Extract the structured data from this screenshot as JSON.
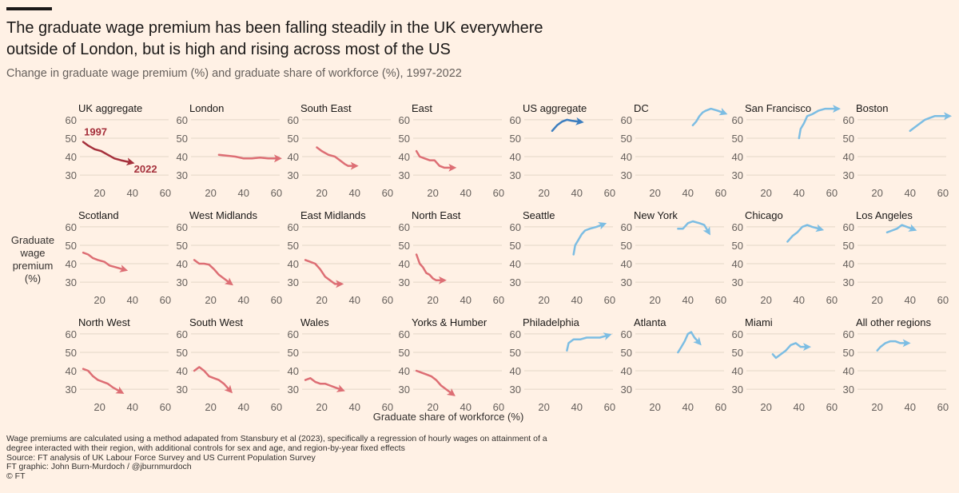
{
  "header": {
    "title": "The graduate wage premium has been falling steadily in the UK everywhere outside of London, but is high and rising across most of the US",
    "subtitle": "Change in graduate wage premium (%) and graduate share of workforce (%), 1997-2022"
  },
  "y_axis_label": "Graduate wage premium (%)",
  "x_axis_label": "Graduate share of workforce (%)",
  "chart_data": [
    {
      "type": "line",
      "title": "UK aggregate",
      "color": "#a5303b",
      "annotations": [
        "1997",
        "2022"
      ],
      "x": [
        10,
        13,
        17,
        21,
        25,
        29,
        33,
        38
      ],
      "values": [
        48,
        46,
        44,
        43,
        41,
        39,
        38,
        37
      ],
      "xlim": [
        8,
        62
      ],
      "ylim": [
        27,
        63
      ],
      "xticks": [
        20,
        40,
        60
      ],
      "yticks": [
        30,
        40,
        50,
        60
      ]
    },
    {
      "type": "line",
      "title": "London",
      "color": "#dd6e74",
      "x": [
        25,
        30,
        35,
        40,
        45,
        50,
        55,
        60
      ],
      "values": [
        41,
        40.5,
        40,
        39,
        39,
        39.5,
        39,
        39
      ],
      "xlim": [
        8,
        62
      ],
      "ylim": [
        27,
        63
      ],
      "xticks": [
        20,
        40,
        60
      ],
      "yticks": [
        30,
        40,
        50,
        60
      ]
    },
    {
      "type": "line",
      "title": "South East",
      "color": "#dd6e74",
      "x": [
        17,
        20,
        24,
        28,
        31,
        34,
        36,
        39
      ],
      "values": [
        45,
        43,
        41,
        40,
        38,
        36,
        35,
        35
      ],
      "xlim": [
        8,
        62
      ],
      "ylim": [
        27,
        63
      ],
      "xticks": [
        20,
        40,
        60
      ],
      "yticks": [
        30,
        40,
        50,
        60
      ]
    },
    {
      "type": "line",
      "title": "East",
      "color": "#dd6e74",
      "x": [
        10,
        12,
        15,
        18,
        21,
        24,
        27,
        31
      ],
      "values": [
        43,
        40,
        39,
        38,
        38,
        35,
        34,
        34
      ],
      "xlim": [
        8,
        62
      ],
      "ylim": [
        27,
        63
      ],
      "xticks": [
        20,
        40,
        60
      ],
      "yticks": [
        30,
        40,
        50,
        60
      ]
    },
    {
      "type": "line",
      "title": "US aggregate",
      "color": "#3d7ebf",
      "x": [
        25,
        28,
        31,
        34,
        37,
        41
      ],
      "values": [
        54,
        57,
        59,
        60,
        59.5,
        59
      ],
      "xlim": [
        8,
        62
      ],
      "ylim": [
        27,
        63
      ],
      "xticks": [
        20,
        40,
        60
      ],
      "yticks": [
        30,
        40,
        50,
        60
      ]
    },
    {
      "type": "line",
      "title": "DC",
      "color": "#7cbde3",
      "x": [
        43,
        45,
        47,
        49,
        51,
        54,
        58,
        61
      ],
      "values": [
        57,
        59,
        62,
        64,
        65,
        66,
        65,
        64
      ],
      "xlim": [
        8,
        62
      ],
      "ylim": [
        27,
        63
      ],
      "xticks": [
        20,
        40,
        60
      ],
      "yticks": [
        30,
        40,
        50,
        60
      ]
    },
    {
      "type": "line",
      "title": "San Francisco",
      "color": "#7cbde3",
      "x": [
        40,
        41,
        43,
        45,
        48,
        52,
        56,
        62
      ],
      "values": [
        50,
        55,
        58,
        62,
        63,
        65,
        66,
        66
      ],
      "xlim": [
        8,
        62
      ],
      "ylim": [
        27,
        63
      ],
      "xticks": [
        20,
        40,
        60
      ],
      "yticks": [
        30,
        40,
        50,
        60
      ]
    },
    {
      "type": "line",
      "title": "Boston",
      "color": "#7cbde3",
      "x": [
        40,
        43,
        46,
        49,
        52,
        55,
        59,
        62
      ],
      "values": [
        54,
        56,
        58,
        60,
        61,
        62,
        62,
        62
      ],
      "xlim": [
        8,
        62
      ],
      "ylim": [
        27,
        63
      ],
      "xticks": [
        20,
        40,
        60
      ],
      "yticks": [
        30,
        40,
        50,
        60
      ]
    },
    {
      "type": "line",
      "title": "Scotland",
      "color": "#dd6e74",
      "x": [
        10,
        13,
        16,
        19,
        23,
        26,
        30,
        34
      ],
      "values": [
        46,
        45,
        43,
        42,
        41,
        39,
        38,
        37
      ],
      "xlim": [
        8,
        62
      ],
      "ylim": [
        27,
        63
      ],
      "xticks": [
        20,
        40,
        60
      ],
      "yticks": [
        30,
        40,
        50,
        60
      ]
    },
    {
      "type": "line",
      "title": "West Midlands",
      "color": "#dd6e74",
      "x": [
        10,
        13,
        16,
        19,
        22,
        25,
        28,
        31
      ],
      "values": [
        42,
        40,
        40,
        39.5,
        37,
        34,
        32,
        30
      ],
      "xlim": [
        8,
        62
      ],
      "ylim": [
        27,
        63
      ],
      "xticks": [
        20,
        40,
        60
      ],
      "yticks": [
        30,
        40,
        50,
        60
      ]
    },
    {
      "type": "line",
      "title": "East Midlands",
      "color": "#dd6e74",
      "x": [
        10,
        13,
        16,
        19,
        22,
        25,
        28,
        30
      ],
      "values": [
        42,
        41,
        40,
        37,
        33,
        31,
        29,
        29
      ],
      "xlim": [
        8,
        62
      ],
      "ylim": [
        27,
        63
      ],
      "xticks": [
        20,
        40,
        60
      ],
      "yticks": [
        30,
        40,
        50,
        60
      ]
    },
    {
      "type": "line",
      "title": "North East",
      "color": "#dd6e74",
      "x": [
        10,
        12,
        14,
        16,
        18,
        20,
        22,
        25
      ],
      "values": [
        45,
        40,
        38,
        35,
        34,
        32,
        31,
        31
      ],
      "xlim": [
        8,
        62
      ],
      "ylim": [
        27,
        63
      ],
      "xticks": [
        20,
        40,
        60
      ],
      "yticks": [
        30,
        40,
        50,
        60
      ]
    },
    {
      "type": "line",
      "title": "Seattle",
      "color": "#7cbde3",
      "x": [
        38,
        39,
        41,
        43,
        45,
        48,
        52,
        55
      ],
      "values": [
        45,
        50,
        53,
        56,
        58,
        59,
        60,
        61
      ],
      "xlim": [
        8,
        62
      ],
      "ylim": [
        27,
        63
      ],
      "xticks": [
        20,
        40,
        60
      ],
      "yticks": [
        30,
        40,
        50,
        60
      ]
    },
    {
      "type": "line",
      "title": "New York",
      "color": "#7cbde3",
      "x": [
        34,
        37,
        40,
        43,
        47,
        50,
        52
      ],
      "values": [
        59,
        59,
        62,
        63,
        62,
        61,
        58
      ],
      "xlim": [
        8,
        62
      ],
      "ylim": [
        27,
        63
      ],
      "xticks": [
        20,
        40,
        60
      ],
      "yticks": [
        30,
        40,
        50,
        60
      ]
    },
    {
      "type": "line",
      "title": "Chicago",
      "color": "#7cbde3",
      "x": [
        33,
        36,
        39,
        42,
        45,
        48,
        52
      ],
      "values": [
        52,
        55,
        57,
        60,
        61,
        60,
        59
      ],
      "xlim": [
        8,
        62
      ],
      "ylim": [
        27,
        63
      ],
      "xticks": [
        20,
        40,
        60
      ],
      "yticks": [
        30,
        40,
        50,
        60
      ]
    },
    {
      "type": "line",
      "title": "Los Angeles",
      "color": "#7cbde3",
      "x": [
        26,
        29,
        32,
        35,
        38,
        41
      ],
      "values": [
        57,
        58,
        59,
        61,
        60,
        59
      ],
      "xlim": [
        8,
        62
      ],
      "ylim": [
        27,
        63
      ],
      "xticks": [
        20,
        40,
        60
      ],
      "yticks": [
        30,
        40,
        50,
        60
      ]
    },
    {
      "type": "line",
      "title": "North West",
      "color": "#dd6e74",
      "x": [
        10,
        13,
        16,
        19,
        22,
        25,
        28,
        32
      ],
      "values": [
        41,
        40,
        37,
        35,
        34,
        33,
        31,
        29
      ],
      "xlim": [
        8,
        62
      ],
      "ylim": [
        27,
        63
      ],
      "xticks": [
        20,
        40,
        60
      ],
      "yticks": [
        30,
        40,
        50,
        60
      ]
    },
    {
      "type": "line",
      "title": "South West",
      "color": "#dd6e74",
      "x": [
        10,
        13,
        16,
        19,
        22,
        25,
        28,
        31
      ],
      "values": [
        40,
        42,
        40,
        37,
        36,
        35,
        33,
        30
      ],
      "xlim": [
        8,
        62
      ],
      "ylim": [
        27,
        63
      ],
      "xticks": [
        20,
        40,
        60
      ],
      "yticks": [
        30,
        40,
        50,
        60
      ]
    },
    {
      "type": "line",
      "title": "Wales",
      "color": "#dd6e74",
      "x": [
        10,
        13,
        16,
        19,
        22,
        25,
        28,
        31
      ],
      "values": [
        35,
        36,
        34,
        33,
        33,
        32,
        31,
        30
      ],
      "xlim": [
        8,
        62
      ],
      "ylim": [
        27,
        63
      ],
      "xticks": [
        20,
        40,
        60
      ],
      "yticks": [
        30,
        40,
        50,
        60
      ]
    },
    {
      "type": "line",
      "title": "Yorks & Humber",
      "color": "#dd6e74",
      "x": [
        10,
        13,
        16,
        19,
        22,
        25,
        28,
        31
      ],
      "values": [
        40,
        39,
        38,
        37,
        35,
        32,
        30,
        28
      ],
      "xlim": [
        8,
        62
      ],
      "ylim": [
        27,
        63
      ],
      "xticks": [
        20,
        40,
        60
      ],
      "yticks": [
        30,
        40,
        50,
        60
      ]
    },
    {
      "type": "line",
      "title": "Philadelphia",
      "color": "#7cbde3",
      "x": [
        34,
        35,
        38,
        42,
        46,
        50,
        54,
        58
      ],
      "values": [
        51,
        55,
        57,
        57,
        58,
        58,
        58,
        59
      ],
      "xlim": [
        8,
        62
      ],
      "ylim": [
        27,
        63
      ],
      "xticks": [
        20,
        40,
        60
      ],
      "yticks": [
        30,
        40,
        50,
        60
      ]
    },
    {
      "type": "line",
      "title": "Atlanta",
      "color": "#7cbde3",
      "x": [
        34,
        36,
        38,
        40,
        42,
        44,
        46
      ],
      "values": [
        50,
        53,
        56,
        60,
        61,
        58,
        56
      ],
      "xlim": [
        8,
        62
      ],
      "ylim": [
        27,
        63
      ],
      "xticks": [
        20,
        40,
        60
      ],
      "yticks": [
        30,
        40,
        50,
        60
      ]
    },
    {
      "type": "line",
      "title": "Miami",
      "color": "#7cbde3",
      "x": [
        24,
        26,
        29,
        32,
        35,
        38,
        41,
        44
      ],
      "values": [
        49,
        47,
        49,
        51,
        54,
        55,
        53,
        53
      ],
      "xlim": [
        8,
        62
      ],
      "ylim": [
        27,
        63
      ],
      "xticks": [
        20,
        40,
        60
      ],
      "yticks": [
        30,
        40,
        50,
        60
      ]
    },
    {
      "type": "line",
      "title": "All other regions",
      "color": "#7cbde3",
      "x": [
        20,
        22,
        25,
        28,
        31,
        34,
        37
      ],
      "values": [
        51,
        53,
        55,
        56,
        56,
        55,
        55
      ],
      "xlim": [
        8,
        62
      ],
      "ylim": [
        27,
        63
      ],
      "xticks": [
        20,
        40,
        60
      ],
      "yticks": [
        30,
        40,
        50,
        60
      ]
    }
  ],
  "footer": {
    "note": "Wage premiums are calculated using a method adapated from Stansbury et al (2023), specifically a regression of hourly wages on attainment of a degree interacted with their region, with additional controls for sex and age, and region-by-year fixed effects",
    "source": "Source: FT analysis of UK Labour Force Survey and US Current Population Survey",
    "credit": "FT graphic: John Burn-Murdoch / @jburnmurdoch",
    "copyright": "© FT"
  }
}
